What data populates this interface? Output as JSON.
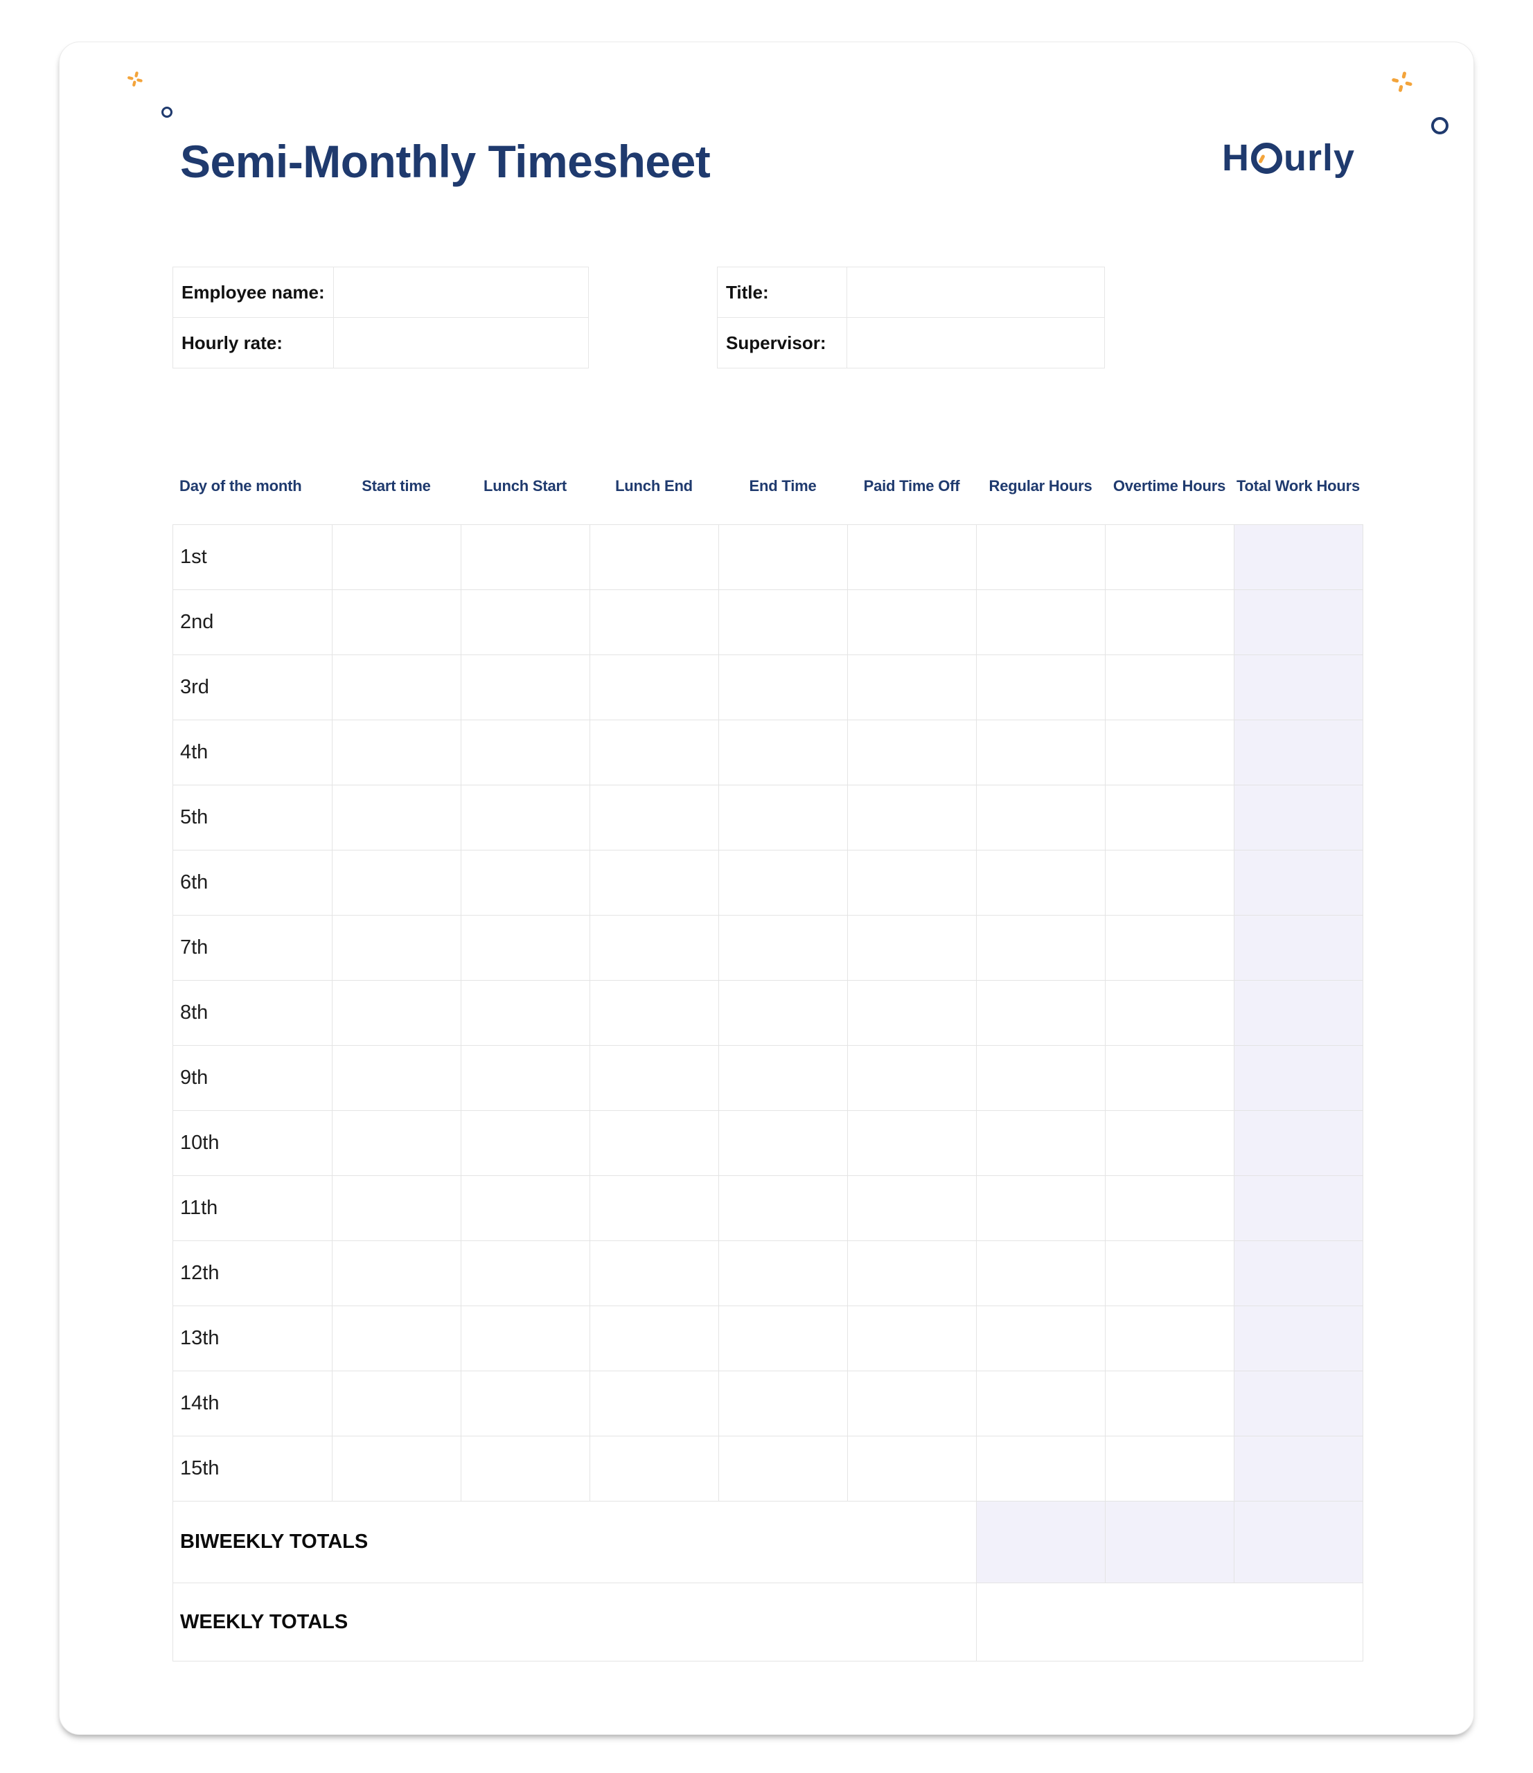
{
  "header": {
    "title": "Semi-Monthly Timesheet",
    "logo": {
      "name": "Hourly",
      "prefix": "H",
      "suffix": "urly"
    }
  },
  "info": {
    "left": [
      {
        "label": "Employee name:",
        "value": ""
      },
      {
        "label": "Hourly rate:",
        "value": ""
      }
    ],
    "right": [
      {
        "label": "Title:",
        "value": ""
      },
      {
        "label": "Supervisor:",
        "value": ""
      }
    ]
  },
  "timesheet": {
    "columns": [
      "Day of the month",
      "Start time",
      "Lunch Start",
      "Lunch End",
      "End Time",
      "Paid Time Off",
      "Regular Hours",
      "Overtime Hours",
      "Total Work Hours"
    ],
    "rows": [
      "1st",
      "2nd",
      "3rd",
      "4th",
      "5th",
      "6th",
      "7th",
      "8th",
      "9th",
      "10th",
      "11th",
      "12th",
      "13th",
      "14th",
      "15th"
    ],
    "totals": {
      "biweekly_label": "BIWEEKLY TOTALS",
      "weekly_label": "WEEKLY TOTALS"
    }
  },
  "colors": {
    "accent_navy": "#1F3A6E",
    "accent_orange": "#F3A43B",
    "highlight_lavender": "#F2F1FA"
  }
}
